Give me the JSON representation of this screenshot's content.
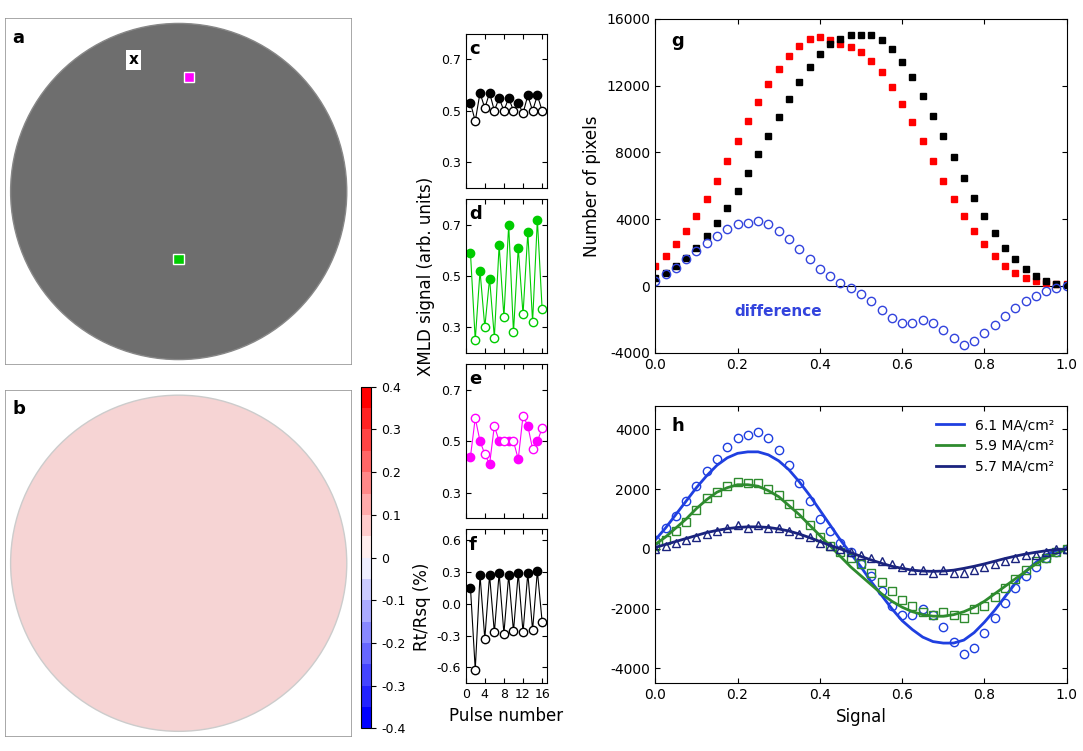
{
  "chart_data": [
    {
      "type": "image",
      "panel": "a",
      "annotations": [
        "x"
      ]
    },
    {
      "type": "image",
      "panel": "b",
      "colorbar": {
        "range": [
          -0.4,
          0.4
        ],
        "ticks": [
          -0.4,
          -0.3,
          -0.2,
          -0.1,
          0,
          0.1,
          0.2,
          0.3,
          0.4
        ]
      }
    },
    {
      "type": "line",
      "panel": "c",
      "x": [
        1,
        2,
        3,
        4,
        5,
        6,
        7,
        8,
        9,
        10,
        11,
        12,
        13,
        14,
        15,
        16
      ],
      "series": [
        {
          "color": "#000000",
          "marker": "o",
          "values": [
            0.53,
            0.46,
            0.57,
            0.51,
            0.57,
            0.5,
            0.55,
            0.5,
            0.55,
            0.5,
            0.53,
            0.49,
            0.56,
            0.5,
            0.56,
            0.5
          ]
        }
      ],
      "xlim": [
        0,
        17
      ],
      "xticks": [
        0,
        4,
        8,
        12,
        16
      ],
      "ylim": [
        0.2,
        0.8
      ],
      "yticks": [
        0.3,
        0.5,
        0.7
      ],
      "tick_labels": "y"
    },
    {
      "type": "line",
      "panel": "d",
      "ylabel": "XMLD signal (arb. units)",
      "x": [
        1,
        2,
        3,
        4,
        5,
        6,
        7,
        8,
        9,
        10,
        11,
        12,
        13,
        14,
        15,
        16
      ],
      "series": [
        {
          "color": "#00cc00",
          "marker": "o",
          "values": [
            0.59,
            0.25,
            0.52,
            0.3,
            0.49,
            0.26,
            0.62,
            0.34,
            0.7,
            0.28,
            0.61,
            0.35,
            0.67,
            0.32,
            0.72,
            0.37
          ]
        }
      ],
      "xlim": [
        0,
        17
      ],
      "xticks": [
        0,
        4,
        8,
        12,
        16
      ],
      "ylim": [
        0.2,
        0.8
      ],
      "yticks": [
        0.3,
        0.5,
        0.7
      ],
      "tick_labels": "y"
    },
    {
      "type": "line",
      "panel": "e",
      "x": [
        1,
        2,
        3,
        4,
        5,
        6,
        7,
        8,
        9,
        10,
        11,
        12,
        13,
        14,
        15,
        16
      ],
      "series": [
        {
          "color": "#ff00ff",
          "marker": "o",
          "values": [
            0.44,
            0.59,
            0.5,
            0.45,
            0.41,
            0.56,
            0.5,
            0.5,
            0.5,
            0.5,
            0.43,
            0.6,
            0.56,
            0.47,
            0.5,
            0.55
          ]
        }
      ],
      "xlim": [
        0,
        17
      ],
      "xticks": [
        0,
        4,
        8,
        12,
        16
      ],
      "ylim": [
        0.2,
        0.8
      ],
      "yticks": [
        0.3,
        0.5,
        0.7
      ],
      "tick_labels": "y"
    },
    {
      "type": "line",
      "panel": "f",
      "xlabel": "Pulse number",
      "ylabel": "Rt/Rsq (%)",
      "x": [
        1,
        2,
        3,
        4,
        5,
        6,
        7,
        8,
        9,
        10,
        11,
        12,
        13,
        14,
        15,
        16
      ],
      "series": [
        {
          "color": "#000000",
          "marker": "o",
          "values": [
            0.15,
            -0.62,
            0.27,
            -0.33,
            0.27,
            -0.27,
            0.29,
            -0.28,
            0.27,
            -0.26,
            0.29,
            -0.27,
            0.29,
            -0.25,
            0.31,
            -0.17
          ]
        }
      ],
      "xlim": [
        0,
        17
      ],
      "xticks": [
        0,
        4,
        8,
        12,
        16
      ],
      "ylim": [
        -0.75,
        0.7
      ],
      "yticks": [
        -0.6,
        -0.3,
        0.0,
        0.3,
        0.6
      ],
      "tick_labels": true
    },
    {
      "type": "scatter",
      "panel": "g",
      "ylabel": "Number of pixels",
      "x": [
        0,
        0.025,
        0.05,
        0.075,
        0.1,
        0.125,
        0.15,
        0.175,
        0.2,
        0.225,
        0.25,
        0.275,
        0.3,
        0.325,
        0.35,
        0.375,
        0.4,
        0.425,
        0.45,
        0.475,
        0.5,
        0.525,
        0.55,
        0.575,
        0.6,
        0.625,
        0.65,
        0.675,
        0.7,
        0.725,
        0.75,
        0.775,
        0.8,
        0.825,
        0.85,
        0.875,
        0.9,
        0.925,
        0.95,
        0.975,
        1.0
      ],
      "series": [
        {
          "color": "#ff0000",
          "marker": "s",
          "values": [
            1200,
            1800,
            2500,
            3300,
            4200,
            5200,
            6300,
            7500,
            8700,
            9900,
            11000,
            12100,
            13000,
            13800,
            14400,
            14800,
            14900,
            14700,
            14500,
            14300,
            14000,
            13500,
            12800,
            11900,
            10900,
            9800,
            8700,
            7500,
            6300,
            5200,
            4200,
            3300,
            2500,
            1800,
            1200,
            800,
            500,
            300,
            200,
            100,
            100
          ]
        },
        {
          "color": "#000000",
          "marker": "s",
          "values": [
            500,
            800,
            1200,
            1700,
            2300,
            3000,
            3800,
            4700,
            5700,
            6800,
            7900,
            9000,
            10100,
            11200,
            12200,
            13100,
            13900,
            14500,
            14800,
            15000,
            15000,
            15000,
            14700,
            14200,
            13400,
            12500,
            11400,
            10200,
            9000,
            7700,
            6500,
            5300,
            4200,
            3200,
            2300,
            1600,
            1000,
            600,
            300,
            150,
            50
          ]
        },
        {
          "color": "#3344dd",
          "marker": "open_circle",
          "annotation": "difference",
          "values": [
            300,
            700,
            1100,
            1600,
            2100,
            2600,
            3000,
            3400,
            3700,
            3800,
            3900,
            3700,
            3300,
            2800,
            2200,
            1600,
            1000,
            600,
            200,
            -100,
            -500,
            -900,
            -1400,
            -1900,
            -2200,
            -2200,
            -2000,
            -2200,
            -2600,
            -3100,
            -3500,
            -3300,
            -2800,
            -2300,
            -1800,
            -1300,
            -900,
            -600,
            -300,
            -100,
            0
          ]
        }
      ],
      "xlim": [
        0,
        1
      ],
      "xticks": [
        0.0,
        0.2,
        0.4,
        0.6,
        0.8,
        1.0
      ],
      "ylim": [
        -4000,
        16000
      ],
      "yticks": [
        -4000,
        0,
        4000,
        8000,
        12000,
        16000
      ],
      "tick_labels": true
    },
    {
      "type": "scatter",
      "panel": "h",
      "xlabel": "Signal",
      "legend": "upper right",
      "x": [
        0,
        0.025,
        0.05,
        0.075,
        0.1,
        0.125,
        0.15,
        0.175,
        0.2,
        0.225,
        0.25,
        0.275,
        0.3,
        0.325,
        0.35,
        0.375,
        0.4,
        0.425,
        0.45,
        0.475,
        0.5,
        0.525,
        0.55,
        0.575,
        0.6,
        0.625,
        0.65,
        0.675,
        0.7,
        0.725,
        0.75,
        0.775,
        0.8,
        0.825,
        0.85,
        0.875,
        0.9,
        0.925,
        0.95,
        0.975,
        1.0
      ],
      "series": [
        {
          "name": "6.1 MA/cm²",
          "color": "#1f3fe0",
          "marker": "open_circle",
          "values": [
            300,
            700,
            1100,
            1600,
            2100,
            2600,
            3000,
            3400,
            3700,
            3800,
            3900,
            3700,
            3300,
            2800,
            2200,
            1600,
            1000,
            600,
            200,
            -100,
            -500,
            -900,
            -1400,
            -1900,
            -2200,
            -2200,
            -2000,
            -2200,
            -2600,
            -3100,
            -3500,
            -3300,
            -2800,
            -2300,
            -1800,
            -1300,
            -900,
            -600,
            -300,
            -100,
            0
          ],
          "fit": [
            300,
            700,
            1150,
            1600,
            2050,
            2450,
            2800,
            3050,
            3200,
            3250,
            3250,
            3150,
            2950,
            2650,
            2250,
            1800,
            1300,
            800,
            300,
            -150,
            -600,
            -1100,
            -1550,
            -2000,
            -2400,
            -2700,
            -2950,
            -3100,
            -3150,
            -3150,
            -3050,
            -2800,
            -2450,
            -2050,
            -1600,
            -1150,
            -750,
            -450,
            -200,
            -50,
            0
          ]
        },
        {
          "name": "5.9 MA/cm²",
          "color": "#2e8b2e",
          "marker": "open_square",
          "values": [
            100,
            300,
            600,
            900,
            1300,
            1700,
            1900,
            2100,
            2250,
            2200,
            2200,
            2000,
            1800,
            1500,
            1200,
            800,
            400,
            100,
            -100,
            -300,
            -500,
            -800,
            -1100,
            -1400,
            -1700,
            -1900,
            -2100,
            -2200,
            -2100,
            -2200,
            -2300,
            -2000,
            -1900,
            -1600,
            -1300,
            -1000,
            -700,
            -400,
            -300,
            -100,
            0
          ],
          "fit": [
            150,
            400,
            700,
            1000,
            1350,
            1650,
            1900,
            2050,
            2150,
            2150,
            2100,
            1950,
            1750,
            1450,
            1150,
            800,
            450,
            100,
            -250,
            -600,
            -900,
            -1200,
            -1500,
            -1750,
            -1950,
            -2100,
            -2200,
            -2250,
            -2250,
            -2200,
            -2100,
            -1950,
            -1750,
            -1500,
            -1250,
            -1000,
            -750,
            -500,
            -300,
            -150,
            0
          ]
        },
        {
          "name": "5.7 MA/cm²",
          "color": "#1a237e",
          "marker": "open_triangle",
          "values": [
            0,
            100,
            200,
            300,
            400,
            500,
            600,
            700,
            800,
            700,
            800,
            700,
            700,
            600,
            500,
            400,
            200,
            100,
            0,
            -100,
            -200,
            -300,
            -400,
            -500,
            -600,
            -700,
            -700,
            -800,
            -700,
            -800,
            -800,
            -700,
            -600,
            -500,
            -400,
            -300,
            -200,
            -200,
            -100,
            0,
            0
          ],
          "fit": [
            50,
            150,
            250,
            350,
            450,
            550,
            620,
            680,
            720,
            740,
            740,
            720,
            670,
            600,
            500,
            380,
            250,
            120,
            0,
            -120,
            -250,
            -370,
            -480,
            -580,
            -650,
            -710,
            -740,
            -750,
            -740,
            -710,
            -650,
            -580,
            -500,
            -410,
            -320,
            -240,
            -170,
            -110,
            -60,
            -20,
            0
          ]
        }
      ],
      "xlim": [
        0,
        1
      ],
      "xticks": [
        0.0,
        0.2,
        0.4,
        0.6,
        0.8,
        1.0
      ],
      "ylim": [
        -4500,
        4800
      ],
      "yticks": [
        -4000,
        -2000,
        0,
        2000,
        4000
      ],
      "tick_labels": true
    }
  ]
}
